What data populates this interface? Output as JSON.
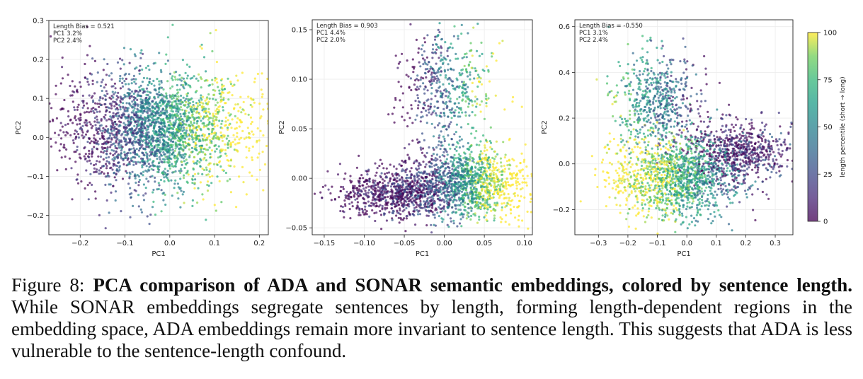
{
  "colorbar": {
    "label": "length percentile (short → long)",
    "ticks": [
      "0",
      "25",
      "50",
      "75",
      "100"
    ],
    "colormap": "viridis"
  },
  "chart_data": [
    {
      "type": "scatter",
      "xlabel": "PC1",
      "ylabel": "PC2",
      "annotation": [
        "Length Bias = 0.521",
        "PC1 3.2%",
        "PC2 2.4%"
      ],
      "xlim": [
        -0.27,
        0.22
      ],
      "ylim": [
        -0.25,
        0.3
      ],
      "xticks": [
        -0.2,
        -0.1,
        0.0,
        0.1,
        0.2
      ],
      "xtick_labels": [
        "−0.2",
        "−0.1",
        "0.0",
        "0.1",
        "0.2"
      ],
      "yticks": [
        -0.2,
        -0.1,
        0.0,
        0.1,
        0.2,
        0.3
      ],
      "ytick_labels": [
        "−0.2",
        "−0.1",
        "0.0",
        "0.1",
        "0.2",
        "0.3"
      ],
      "grid": true,
      "colorbar": false,
      "clusters": [
        {
          "cx": -0.03,
          "cy": 0.02,
          "sx": 0.1,
          "sy": 0.075,
          "color_percentile": 50,
          "weight": 1.0,
          "pc_gradient": 0.9
        }
      ]
    },
    {
      "type": "scatter",
      "xlabel": "PC1",
      "ylabel": "PC2",
      "annotation": [
        "Length Bias = 0.903",
        "PC1 4.4%",
        "PC2 2.0%"
      ],
      "xlim": [
        -0.165,
        0.11
      ],
      "ylim": [
        -0.057,
        0.16
      ],
      "xticks": [
        -0.15,
        -0.1,
        -0.05,
        0.0,
        0.05,
        0.1
      ],
      "xtick_labels": [
        "−0.15",
        "−0.10",
        "−0.05",
        "0.00",
        "0.05",
        "0.10"
      ],
      "yticks": [
        -0.05,
        0.0,
        0.05,
        0.1,
        0.15
      ],
      "ytick_labels": [
        "−0.05",
        "0.00",
        "0.05",
        "0.10",
        "0.15"
      ],
      "grid": true,
      "colorbar": false,
      "clusters": [
        {
          "cx": -0.06,
          "cy": -0.015,
          "sx": 0.035,
          "sy": 0.012,
          "color_percentile": 5,
          "weight": 0.55,
          "pc_gradient": 0.2
        },
        {
          "cx": 0.03,
          "cy": -0.005,
          "sx": 0.035,
          "sy": 0.018,
          "color_percentile": 65,
          "weight": 0.9,
          "pc_gradient": 0.9
        },
        {
          "cx": 0.0,
          "cy": 0.09,
          "sx": 0.03,
          "sy": 0.03,
          "color_percentile": 40,
          "weight": 0.35,
          "pc_gradient": 0.8
        }
      ]
    },
    {
      "type": "scatter",
      "xlabel": "PC1",
      "ylabel": "PC2",
      "annotation": [
        "Length Bias = -0.550",
        "PC1 3.1%",
        "PC2 2.4%"
      ],
      "xlim": [
        -0.38,
        0.36
      ],
      "ylim": [
        -0.31,
        0.63
      ],
      "xticks": [
        -0.3,
        -0.2,
        -0.1,
        0.0,
        0.1,
        0.2,
        0.3
      ],
      "xtick_labels": [
        "−0.3",
        "−0.2",
        "−0.1",
        "0.0",
        "0.1",
        "0.2",
        "0.3"
      ],
      "yticks": [
        -0.2,
        0.0,
        0.2,
        0.4,
        0.6
      ],
      "ytick_labels": [
        "−0.2",
        "0.0",
        "0.2",
        "0.4",
        "0.6"
      ],
      "grid": true,
      "colorbar": true,
      "clusters": [
        {
          "cx": 0.18,
          "cy": 0.06,
          "sx": 0.09,
          "sy": 0.06,
          "color_percentile": 5,
          "weight": 0.45,
          "pc_gradient": 0.15
        },
        {
          "cx": -0.03,
          "cy": -0.06,
          "sx": 0.11,
          "sy": 0.09,
          "color_percentile": 75,
          "weight": 1.0,
          "pc_gradient": -0.6
        },
        {
          "cx": -0.1,
          "cy": 0.28,
          "sx": 0.07,
          "sy": 0.1,
          "color_percentile": 45,
          "weight": 0.4,
          "pc_gradient": -0.4
        }
      ]
    }
  ],
  "caption": {
    "prefix": "Figure 8: ",
    "bold": "PCA comparison of ADA and SONAR semantic embeddings, colored by sentence length.",
    "body": " While SONAR embeddings segregate sentences by length, forming length-dependent regions in the embedding space, ADA embeddings remain more invariant to sentence length. This suggests that ADA is less vulnerable to the sentence-length confound."
  }
}
